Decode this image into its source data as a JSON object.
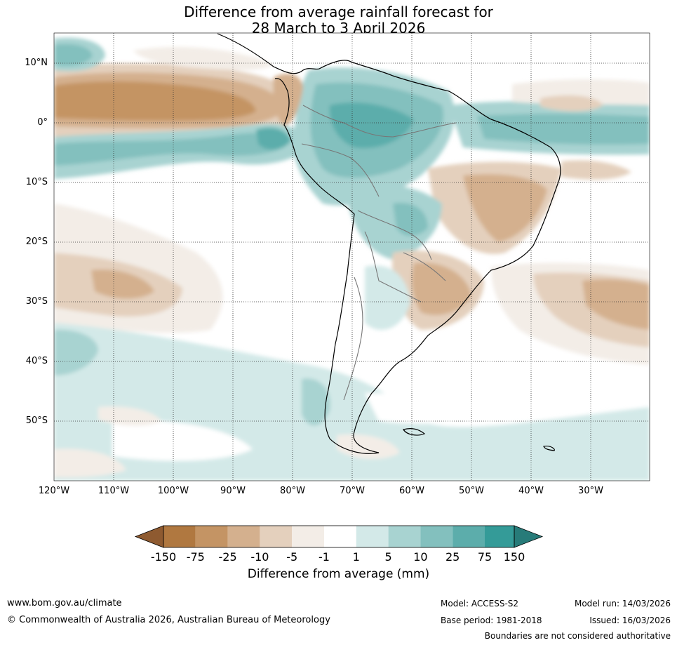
{
  "title": {
    "line1": "Difference from average rainfall forecast for",
    "line2": "28 March to 3 April 2026"
  },
  "map": {
    "lat_labels": [
      "10°N",
      "0°",
      "10°S",
      "20°S",
      "30°S",
      "40°S",
      "50°S"
    ],
    "lon_labels": [
      "120°W",
      "110°W",
      "100°W",
      "90°W",
      "80°W",
      "70°W",
      "60°W",
      "50°W",
      "40°W",
      "30°W"
    ]
  },
  "colorbar": {
    "ticks": [
      "-150",
      "-75",
      "-25",
      "-10",
      "-5",
      "-1",
      "1",
      "5",
      "10",
      "25",
      "75",
      "150"
    ],
    "colors": [
      "#8e5a30",
      "#b07840",
      "#c49464",
      "#d4b08e",
      "#e4d0bd",
      "#f3ede7",
      "#ffffff",
      "#d3e9e8",
      "#a8d3d1",
      "#83c0be",
      "#5cadab",
      "#349b98",
      "#277b79"
    ],
    "title": "Difference from average (mm)"
  },
  "footer": {
    "url": "www.bom.gov.au/climate",
    "copyright": "© Commonwealth of Australia 2026, Australian Bureau of Meteorology",
    "model": "Model: ACCESS-S2",
    "base_period": "Base period: 1981-2018",
    "model_run": "Model run: 14/03/2026",
    "issued": "Issued: 16/03/2026",
    "disclaimer": "Boundaries are not considered authoritative"
  }
}
